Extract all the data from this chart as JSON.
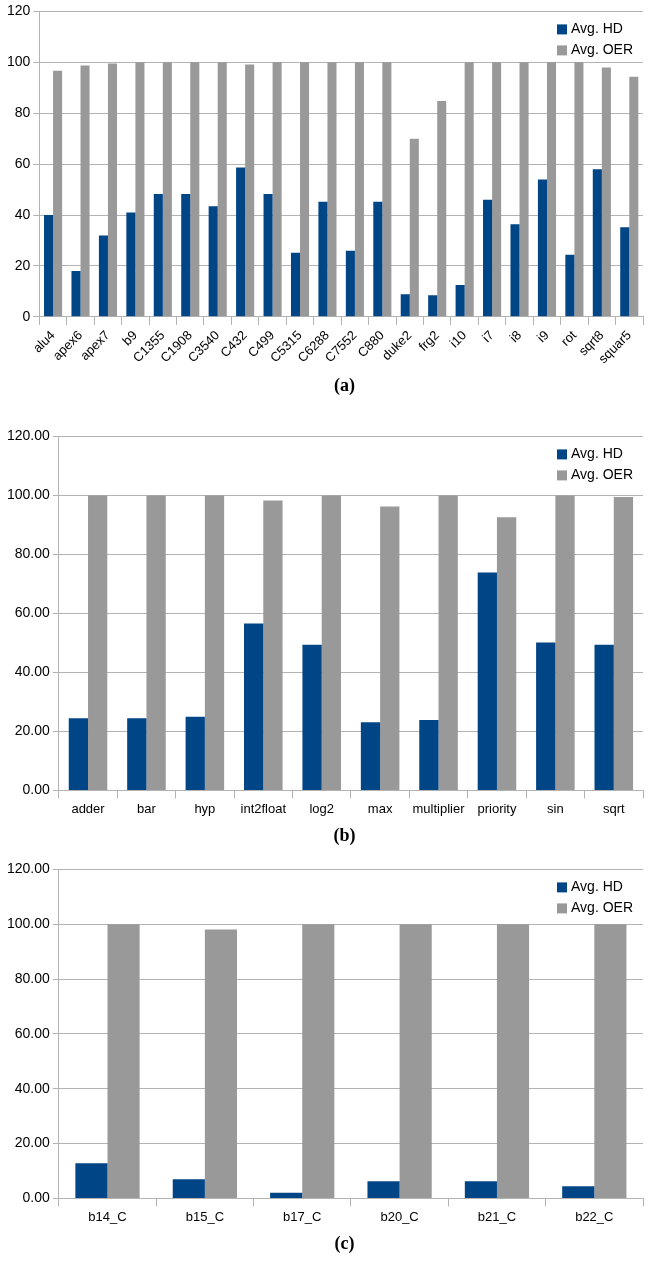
{
  "chart_data": [
    {
      "type": "bar",
      "categories": [
        "alu4",
        "apex6",
        "apex7",
        "b9",
        "C1355",
        "C1908",
        "C3540",
        "C432",
        "C499",
        "C5315",
        "C6288",
        "C7552",
        "C880",
        "duke2",
        "frg2",
        "i10",
        "i7",
        "i8",
        "i9",
        "rot",
        "sqrt8",
        "squar5"
      ],
      "series": [
        {
          "name": "Avg. HD",
          "color": "#004586",
          "values": [
            40,
            18,
            32,
            41,
            48.3,
            48.3,
            43.5,
            58.7,
            48.3,
            25.2,
            45.2,
            26,
            45.2,
            8.9,
            8.5,
            12.5,
            46,
            36.4,
            54,
            24.4,
            58,
            35.2
          ]
        },
        {
          "name": "Avg. OER",
          "color": "#999999",
          "values": [
            96.7,
            98.7,
            99.5,
            100,
            100,
            100,
            100,
            99.1,
            100,
            100,
            100,
            100,
            100,
            70,
            84.8,
            100,
            100,
            100,
            100,
            100,
            98,
            94.3
          ]
        }
      ],
      "ylim": [
        0,
        120
      ],
      "yticks": [
        0,
        20,
        40,
        60,
        80,
        100,
        120
      ],
      "grid": "y",
      "legend": "top right",
      "annotations": [
        "(a)"
      ]
    },
    {
      "type": "bar",
      "categories": [
        "adder",
        "bar",
        "hyp",
        "int2float",
        "log2",
        "max",
        "multiplier",
        "priority",
        "sin",
        "sqrt"
      ],
      "series": [
        {
          "name": "Avg. HD",
          "color": "#004586",
          "values": [
            24.5,
            24.5,
            25,
            56.6,
            49.4,
            23.1,
            23.9,
            73.9,
            50.1,
            49.4
          ]
        },
        {
          "name": "Avg. OER",
          "color": "#999999",
          "values": [
            100,
            100,
            100,
            98.3,
            100,
            96.2,
            100,
            92.6,
            100,
            99.5
          ]
        }
      ],
      "ylim": [
        0,
        120
      ],
      "yticks": [
        {
          "value": 0,
          "label": "0.00"
        },
        {
          "value": 20,
          "label": "20.00"
        },
        {
          "value": 40,
          "label": "40.00"
        },
        {
          "value": 60,
          "label": "60.00"
        },
        {
          "value": 80,
          "label": "80.00"
        },
        {
          "value": 100,
          "label": "100.00"
        },
        {
          "value": 120,
          "label": "120.00"
        }
      ],
      "grid": "y",
      "legend": "top right",
      "annotations": [
        "(b)"
      ]
    },
    {
      "type": "bar",
      "categories": [
        "b14_C",
        "b15_C",
        "b17_C",
        "b20_C",
        "b21_C",
        "b22_C"
      ],
      "series": [
        {
          "name": "Avg. HD",
          "color": "#004586",
          "values": [
            12.8,
            7,
            2.1,
            6.3,
            6.3,
            4.4
          ]
        },
        {
          "name": "Avg. OER",
          "color": "#999999",
          "values": [
            100,
            98.1,
            100,
            100,
            100,
            100
          ]
        }
      ],
      "ylim": [
        0,
        120
      ],
      "yticks": [
        {
          "value": 0,
          "label": "0.00"
        },
        {
          "value": 20,
          "label": "20.00"
        },
        {
          "value": 40,
          "label": "40.00"
        },
        {
          "value": 60,
          "label": "60.00"
        },
        {
          "value": 80,
          "label": "80.00"
        },
        {
          "value": 100,
          "label": "100.00"
        },
        {
          "value": 120,
          "label": "120.00"
        }
      ],
      "grid": "y",
      "legend": "top right",
      "annotations": [
        "(c)"
      ]
    }
  ]
}
